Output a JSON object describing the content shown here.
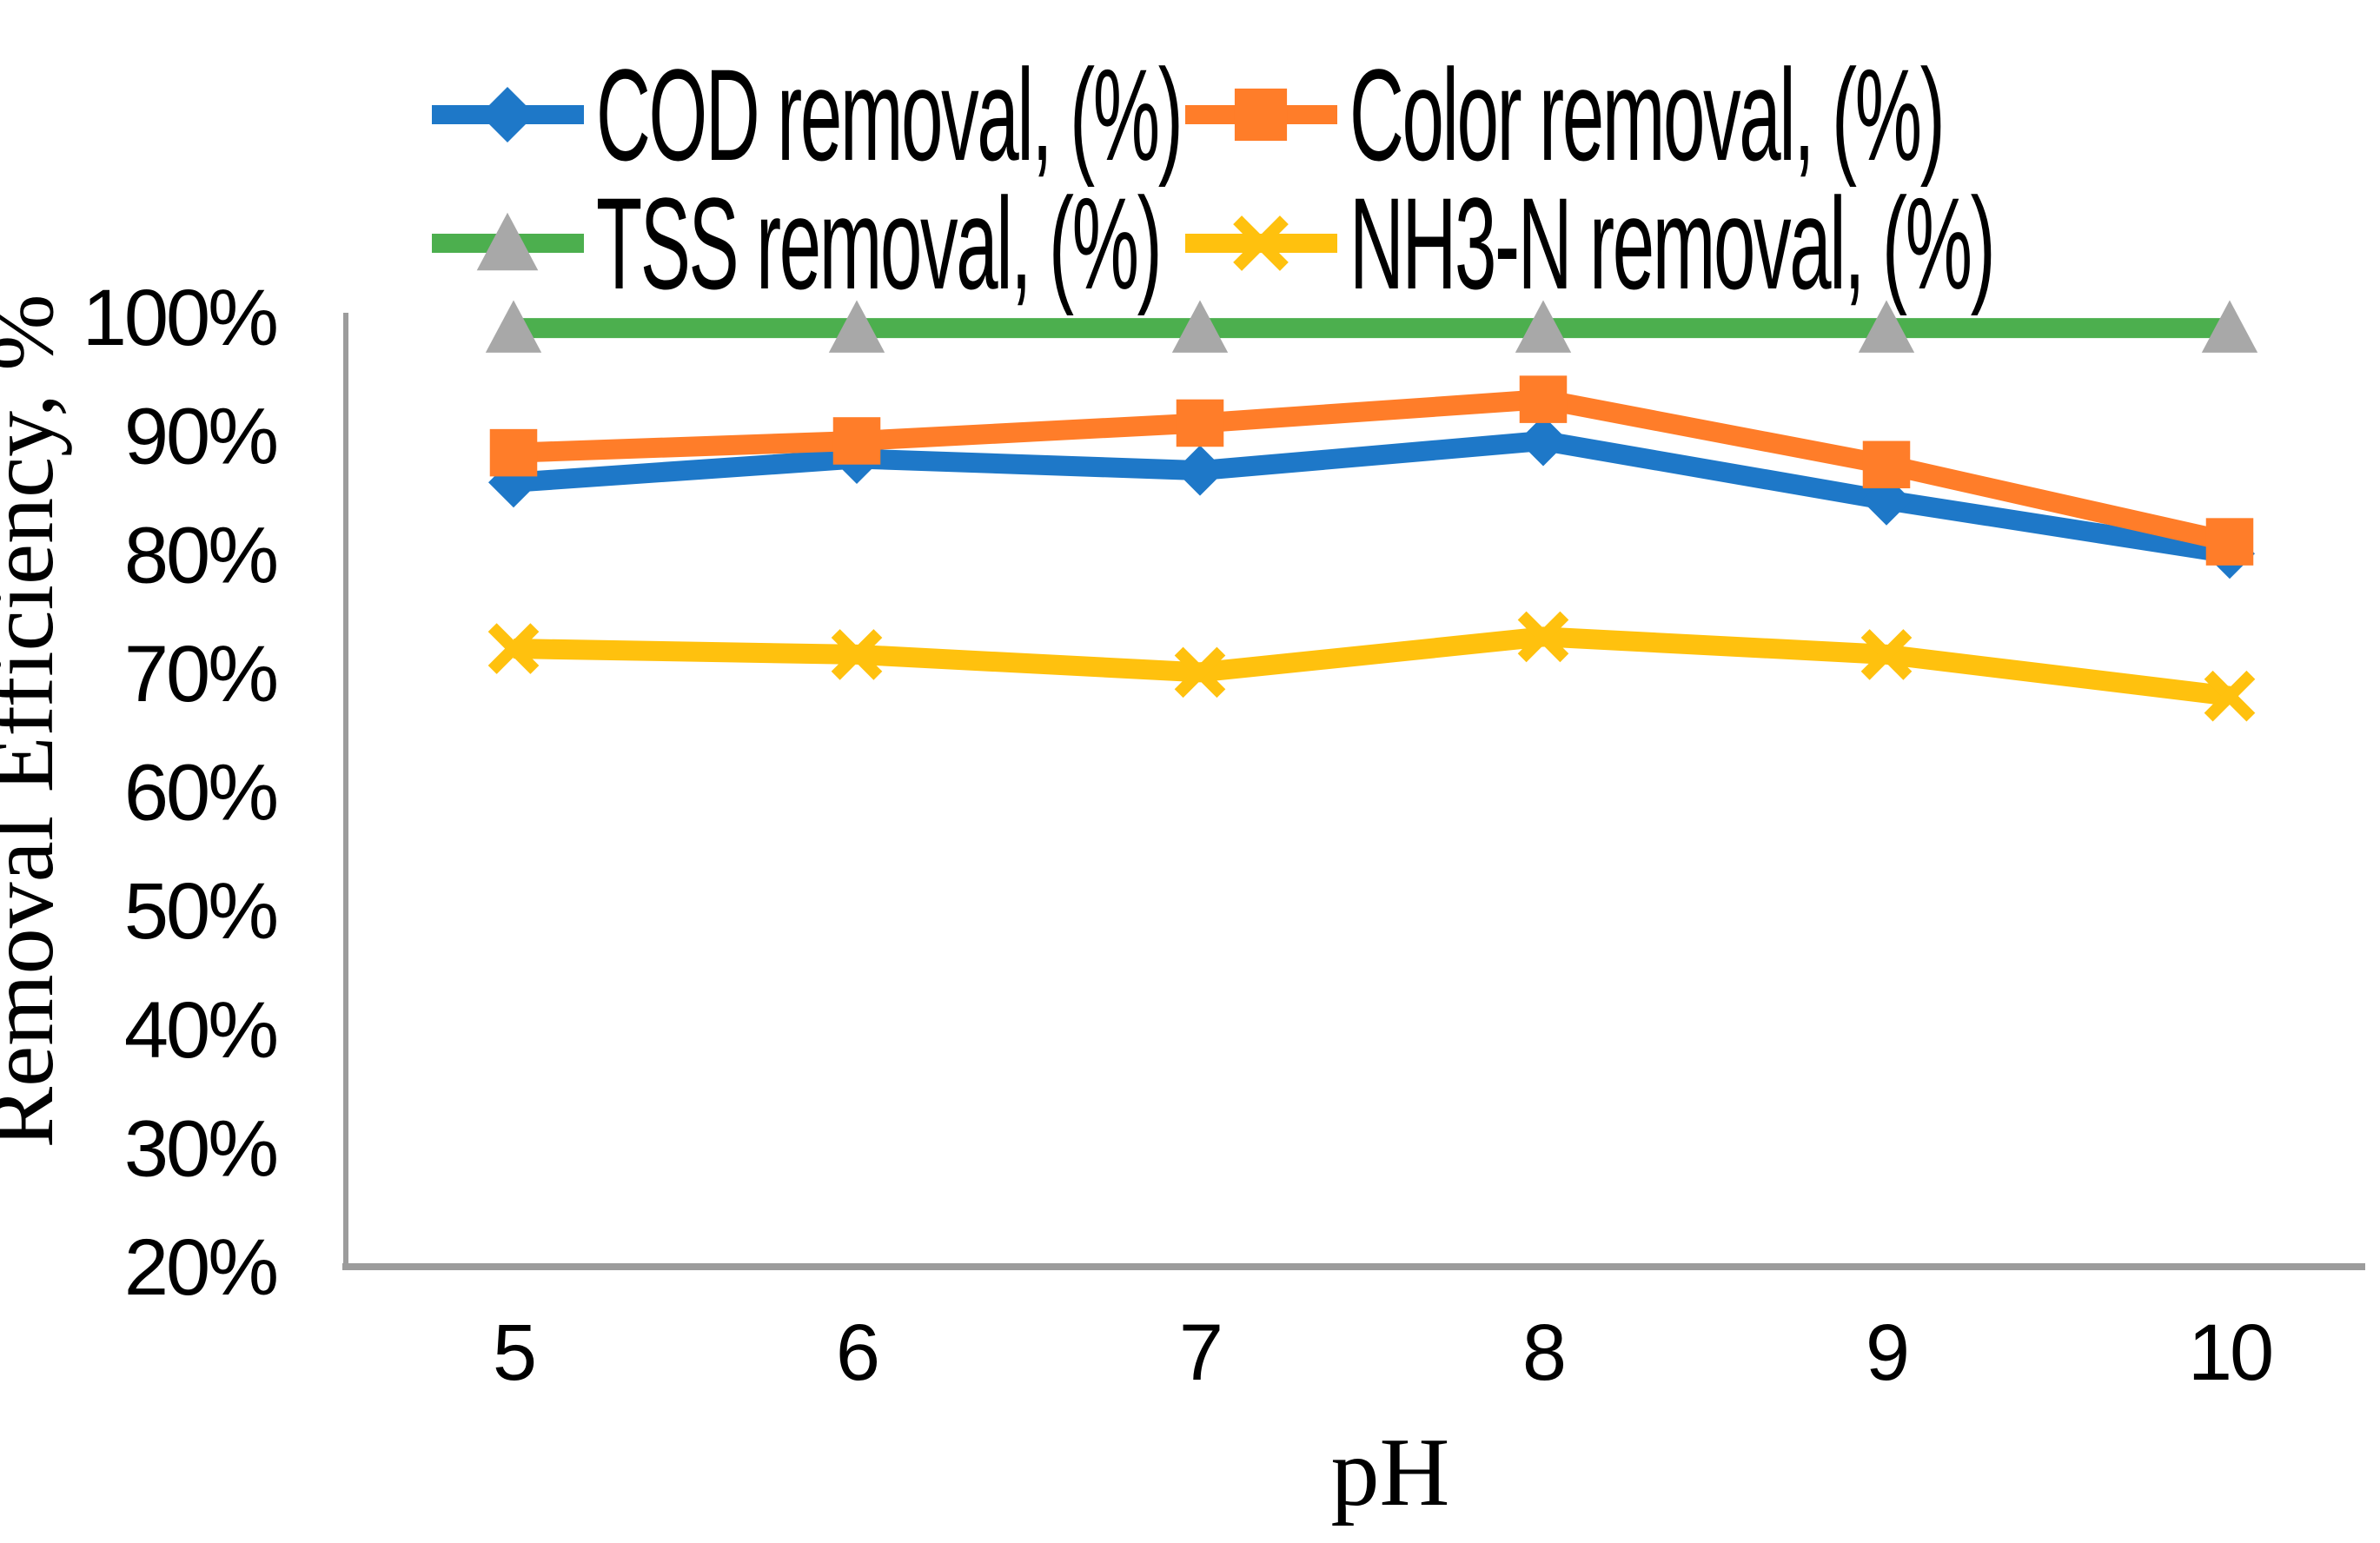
{
  "chart_data": {
    "type": "line",
    "title": "",
    "xlabel": "pH",
    "ylabel": "Removal Efficiency, %",
    "categories": [
      "5",
      "6",
      "7",
      "8",
      "9",
      "10"
    ],
    "x_values": [
      5,
      6,
      7,
      8,
      9,
      10
    ],
    "y_axis": {
      "min": 20,
      "max": 100,
      "step": 10,
      "tick_labels": [
        "20%",
        "30%",
        "40%",
        "50%",
        "60%",
        "70%",
        "80%",
        "90%",
        "100%"
      ]
    },
    "grid": false,
    "legend_position": "top",
    "axis_color": "#9C9C9C",
    "text_color": "#000000",
    "series": [
      {
        "name": "COD removal, (%)",
        "marker": "diamond",
        "color": "#1E78C8",
        "marker_color": "#1E78C8",
        "values": [
          86,
          88,
          87,
          89.5,
          84.5,
          80
        ]
      },
      {
        "name": "Color removal, (%)",
        "marker": "square",
        "color": "#FF7D29",
        "marker_color": "#FF7D29",
        "values": [
          88.5,
          89.5,
          91,
          93,
          87.5,
          81
        ]
      },
      {
        "name": "TSS removal, (%)",
        "marker": "triangle",
        "color": "#4CAF4E",
        "marker_color": "#A8A8A8",
        "values": [
          99,
          99,
          99,
          99,
          99,
          99
        ]
      },
      {
        "name": "NH3-N removal, (%)",
        "marker": "x",
        "color": "#FFC10E",
        "marker_color": "#FFC10E",
        "values": [
          72,
          71.5,
          70,
          73,
          71.5,
          68
        ]
      }
    ]
  }
}
